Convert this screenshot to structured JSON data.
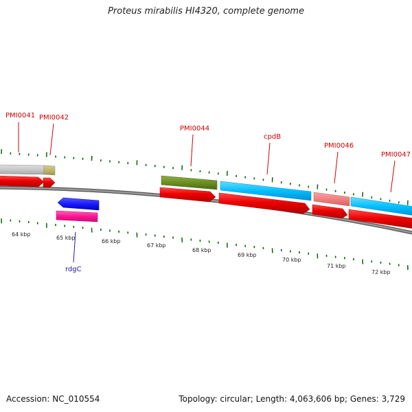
{
  "title": "Proteus mirabilis HI4320, complete genome",
  "footer": {
    "accession": "Accession: NC_010554",
    "summary": "Topology: circular; Length: 4,063,606 bp; Genes: 3,729"
  },
  "scale_labels": [
    "64 kbp",
    "65 kbp",
    "66 kbp",
    "67 kbp",
    "68 kbp",
    "69 kbp",
    "70 kbp",
    "71 kbp",
    "72 kbp"
  ],
  "gene_labels": {
    "pmi0041": "PMI0041",
    "pmi0042": "PMI0042",
    "pmi0044": "PMI0044",
    "cpdb": "cpdB",
    "pmi0046": "PMI0046",
    "pmi0047": "PMI0047",
    "rdgc": "rdgC"
  },
  "colors": {
    "label_red": "#cc0000",
    "label_blue": "#1a1aa0",
    "cds_red": "#ee0000",
    "gene_blue": "#1a1aff",
    "gene_magenta": "#ff1493",
    "gene_olive": "#6b8e23",
    "gene_cyan": "#00bfff",
    "gene_pink": "#f08080",
    "gene_gray": "#c8c8c8",
    "gene_khaki": "#bdb76b",
    "backbone": "#7f7f7f",
    "tick_green": "#006400"
  }
}
